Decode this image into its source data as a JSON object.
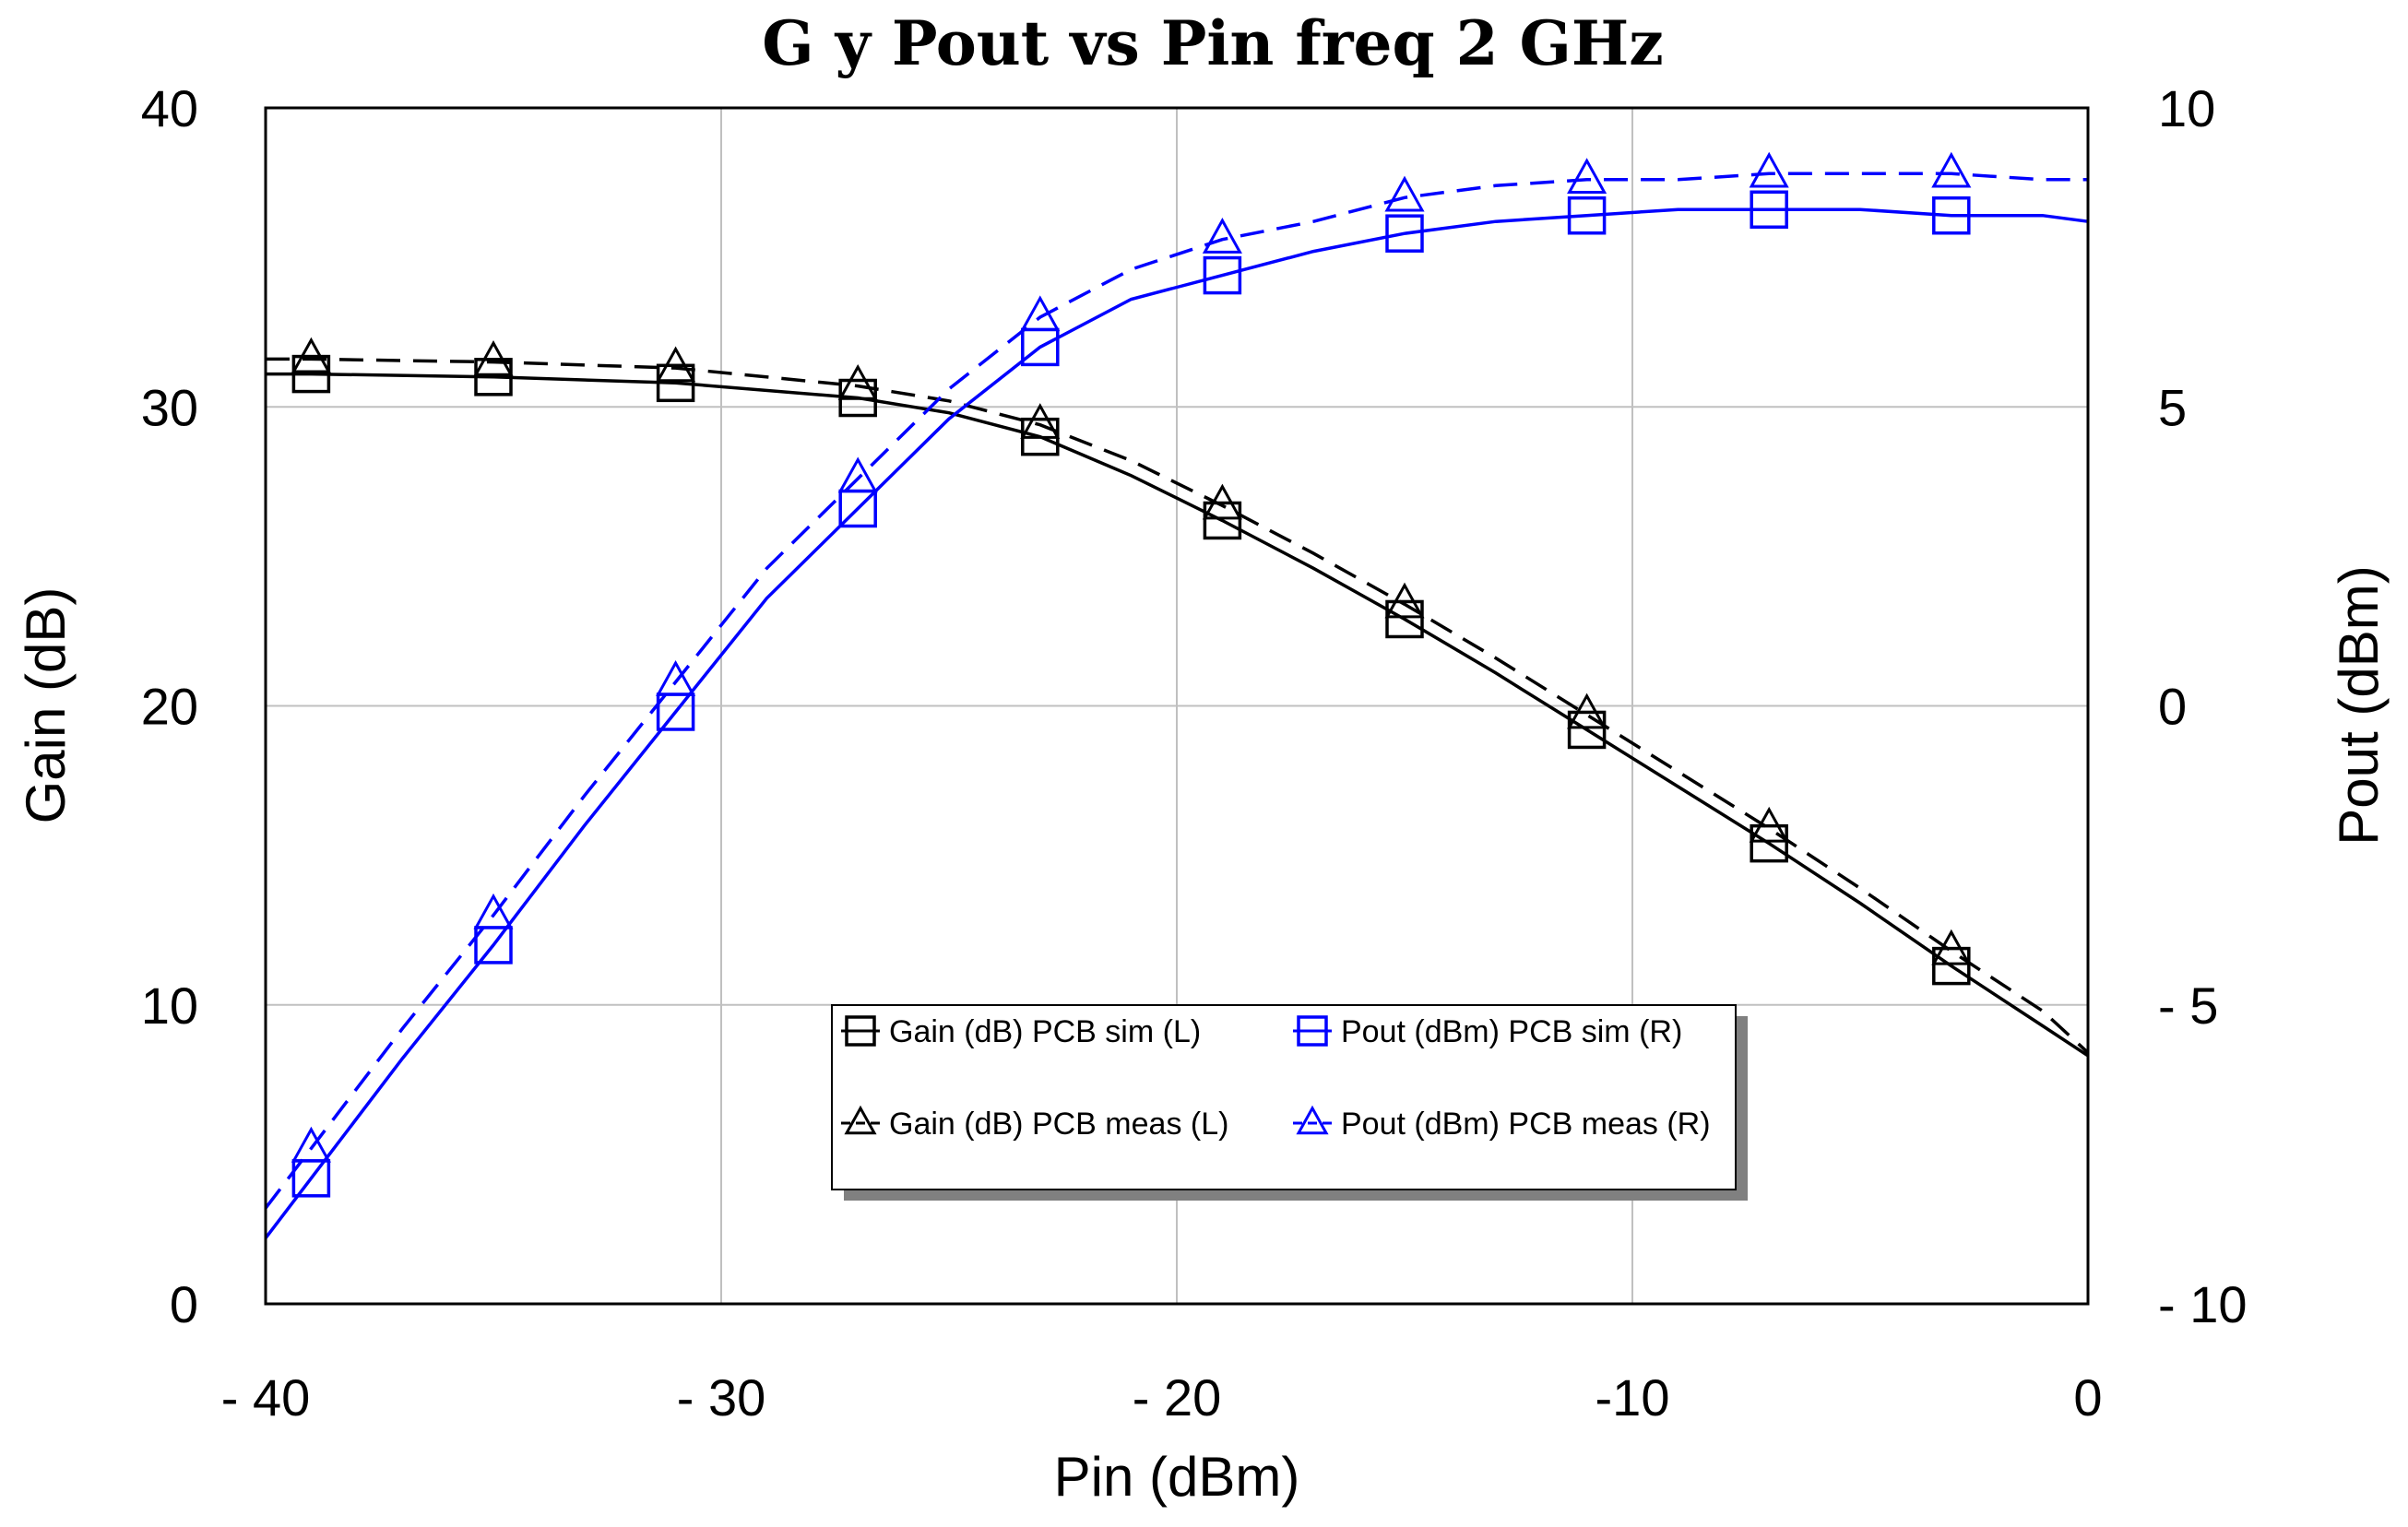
{
  "chart_data": {
    "type": "line",
    "title": "G  y Pout  vs Pin freq 2 GHz",
    "xlabel": "Pin (dBm)",
    "ylabel_left": "Gain (dB)",
    "ylabel_right": "Pout (dBm)",
    "xlim": [
      -40,
      0
    ],
    "ylim_left": [
      0,
      40
    ],
    "ylim_right": [
      -10,
      10
    ],
    "x_ticks": [
      -40,
      -30,
      -20,
      -10,
      0
    ],
    "x_tick_labels": [
      "- 40",
      "- 30",
      "- 20",
      "-10",
      "0"
    ],
    "y_left_ticks": [
      0,
      10,
      20,
      30,
      40
    ],
    "y_left_tick_labels": [
      "0",
      "10",
      "20",
      "30",
      "40"
    ],
    "y_right_ticks": [
      -10,
      -5,
      0,
      5,
      10
    ],
    "y_right_tick_labels": [
      "- 10",
      "- 5",
      "0",
      "5",
      "10"
    ],
    "grid": true,
    "legend_position": "lower-center",
    "series": [
      {
        "name": "Gain (dB) PCB sim (L)",
        "axis": "left",
        "color": "#000000",
        "dash": "solid",
        "marker": "square",
        "x": [
          -40,
          -39,
          -35,
          -31,
          -27,
          -25,
          -23,
          -21,
          -19,
          -17,
          -15,
          -13,
          -11,
          -9,
          -7,
          -5,
          -3,
          -1,
          0
        ],
        "y": [
          31.1,
          31.1,
          31.0,
          30.8,
          30.3,
          29.8,
          29.0,
          27.7,
          26.2,
          24.6,
          22.9,
          21.1,
          19.2,
          17.3,
          15.4,
          13.4,
          11.3,
          9.3,
          8.3
        ],
        "marker_x": [
          -39,
          -35,
          -31,
          -27,
          -23,
          -19,
          -15,
          -11,
          -7,
          -3
        ],
        "marker_y": [
          31.1,
          31.0,
          30.8,
          30.3,
          29.0,
          26.2,
          22.9,
          19.2,
          15.4,
          11.3
        ]
      },
      {
        "name": "Gain (dB) PCB meas (L)",
        "axis": "left",
        "color": "#000000",
        "dash": "dashed",
        "marker": "triangle",
        "x": [
          -40,
          -39,
          -35,
          -31,
          -27,
          -25,
          -23,
          -21,
          -19,
          -17,
          -15,
          -13,
          -11,
          -9,
          -7,
          -5,
          -3,
          -1,
          0
        ],
        "y": [
          31.6,
          31.6,
          31.5,
          31.3,
          30.7,
          30.2,
          29.4,
          28.2,
          26.7,
          25.1,
          23.4,
          21.6,
          19.7,
          17.8,
          15.9,
          13.9,
          11.8,
          9.8,
          8.4
        ],
        "marker_x": [
          -39,
          -35,
          -31,
          -27,
          -23,
          -19,
          -15,
          -11,
          -7,
          -3
        ],
        "marker_y": [
          31.6,
          31.5,
          31.3,
          30.7,
          29.4,
          26.7,
          23.4,
          19.7,
          15.9,
          11.8
        ]
      },
      {
        "name": "Pout (dBm) PCB sim (R)",
        "axis": "right",
        "color": "#0000ff",
        "dash": "solid",
        "marker": "square",
        "x": [
          -40,
          -39,
          -37,
          -35,
          -33,
          -31,
          -29,
          -27,
          -25,
          -23,
          -21,
          -19,
          -17,
          -15,
          -13,
          -11,
          -9,
          -7,
          -5,
          -3,
          -1,
          0
        ],
        "y": [
          -8.9,
          -7.9,
          -5.9,
          -4.0,
          -2.0,
          -0.1,
          1.8,
          3.3,
          4.8,
          6.0,
          6.8,
          7.2,
          7.6,
          7.9,
          8.1,
          8.2,
          8.3,
          8.3,
          8.3,
          8.2,
          8.2,
          8.1
        ],
        "marker_x": [
          -39,
          -35,
          -31,
          -27,
          -23,
          -19,
          -15,
          -11,
          -7,
          -3
        ],
        "marker_y": [
          -7.9,
          -4.0,
          -0.1,
          3.3,
          6.0,
          7.2,
          7.9,
          8.2,
          8.3,
          8.2
        ]
      },
      {
        "name": "Pout (dBm) PCB meas (R)",
        "axis": "right",
        "color": "#0000ff",
        "dash": "dashed",
        "marker": "triangle",
        "x": [
          -40,
          -39,
          -37,
          -35,
          -33,
          -31,
          -29,
          -27,
          -25,
          -23,
          -21,
          -19,
          -17,
          -15,
          -13,
          -11,
          -9,
          -7,
          -5,
          -3,
          -1,
          0
        ],
        "y": [
          -8.4,
          -7.4,
          -5.4,
          -3.5,
          -1.5,
          0.4,
          2.3,
          3.8,
          5.3,
          6.5,
          7.3,
          7.8,
          8.1,
          8.5,
          8.7,
          8.8,
          8.8,
          8.9,
          8.9,
          8.9,
          8.8,
          8.8
        ],
        "marker_x": [
          -39,
          -35,
          -31,
          -27,
          -23,
          -19,
          -15,
          -11,
          -7,
          -3
        ],
        "marker_y": [
          -7.4,
          -3.5,
          0.4,
          3.8,
          6.5,
          7.8,
          8.5,
          8.8,
          8.9,
          8.9
        ]
      }
    ]
  }
}
